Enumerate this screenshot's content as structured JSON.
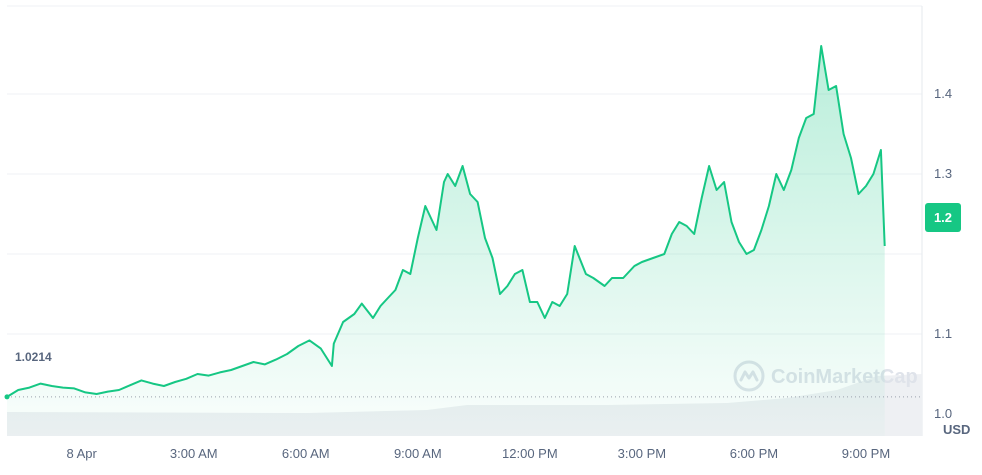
{
  "chart_data": {
    "type": "area",
    "currency_label": "USD",
    "watermark": "CoinMarketCap",
    "open_value": 1.0214,
    "open_label": "1.0214",
    "current_value": 1.2,
    "current_label": "1.2",
    "ylim": [
      0.9725,
      1.51
    ],
    "y_ticks": [
      {
        "value": 1.0,
        "label": "1.0"
      },
      {
        "value": 1.1,
        "label": "1.1"
      },
      {
        "value": 1.2,
        "label": "1.2"
      },
      {
        "value": 1.3,
        "label": "1.3"
      },
      {
        "value": 1.4,
        "label": "1.4"
      }
    ],
    "xlim": [
      -2.0,
      22.5
    ],
    "x_ticks": [
      {
        "value": 0,
        "label": "8 Apr"
      },
      {
        "value": 3,
        "label": "3:00 AM"
      },
      {
        "value": 6,
        "label": "6:00 AM"
      },
      {
        "value": 9,
        "label": "9:00 AM"
      },
      {
        "value": 12,
        "label": "12:00 PM"
      },
      {
        "value": 15,
        "label": "3:00 PM"
      },
      {
        "value": 18,
        "label": "6:00 PM"
      },
      {
        "value": 21,
        "label": "9:00 PM"
      }
    ],
    "x_unit": "hours since 8 Apr 00:00",
    "series": [
      {
        "x": [
          -2.0,
          -1.7,
          -1.4,
          -1.1,
          -0.8,
          -0.5,
          -0.2,
          0.1,
          0.4,
          0.7,
          1.0,
          1.3,
          1.6,
          1.9,
          2.2,
          2.5,
          2.8,
          3.1,
          3.4,
          3.7,
          4.0,
          4.3,
          4.6,
          4.9,
          5.2,
          5.5,
          5.8,
          6.1,
          6.4,
          6.7,
          6.75,
          7.0,
          7.3,
          7.5,
          7.8,
          8.0,
          8.2,
          8.4,
          8.6,
          8.8,
          9.0,
          9.2,
          9.5,
          9.7,
          9.8,
          10.0,
          10.2,
          10.4,
          10.6,
          10.8,
          11.0,
          11.2,
          11.4,
          11.6,
          11.8,
          12.0,
          12.2,
          12.4,
          12.6,
          12.8,
          13.0,
          13.2,
          13.5,
          13.7,
          14.0,
          14.2,
          14.5,
          14.8,
          15.0,
          15.3,
          15.6,
          15.8,
          16.0,
          16.2,
          16.4,
          16.6,
          16.8,
          17.0,
          17.2,
          17.4,
          17.6,
          17.8,
          18.0,
          18.2,
          18.4,
          18.6,
          18.8,
          19.0,
          19.2,
          19.4,
          19.6,
          19.8,
          20.0,
          20.2,
          20.4,
          20.6,
          20.8,
          21.0,
          21.2,
          21.4,
          21.5
        ],
        "y": [
          1.0214,
          1.03,
          1.033,
          1.038,
          1.035,
          1.033,
          1.032,
          1.027,
          1.025,
          1.028,
          1.03,
          1.036,
          1.042,
          1.038,
          1.035,
          1.04,
          1.044,
          1.05,
          1.048,
          1.052,
          1.055,
          1.06,
          1.065,
          1.062,
          1.068,
          1.075,
          1.085,
          1.092,
          1.082,
          1.06,
          1.088,
          1.115,
          1.125,
          1.138,
          1.12,
          1.135,
          1.145,
          1.155,
          1.18,
          1.175,
          1.22,
          1.26,
          1.23,
          1.29,
          1.3,
          1.285,
          1.31,
          1.275,
          1.265,
          1.22,
          1.195,
          1.15,
          1.16,
          1.175,
          1.18,
          1.14,
          1.14,
          1.12,
          1.14,
          1.135,
          1.15,
          1.21,
          1.175,
          1.17,
          1.16,
          1.17,
          1.17,
          1.185,
          1.19,
          1.195,
          1.2,
          1.225,
          1.24,
          1.235,
          1.225,
          1.27,
          1.31,
          1.28,
          1.29,
          1.24,
          1.215,
          1.2,
          1.205,
          1.23,
          1.26,
          1.3,
          1.28,
          1.305,
          1.345,
          1.37,
          1.375,
          1.46,
          1.405,
          1.41,
          1.35,
          1.32,
          1.275,
          1.285,
          1.3,
          1.33,
          1.21
        ]
      }
    ]
  }
}
